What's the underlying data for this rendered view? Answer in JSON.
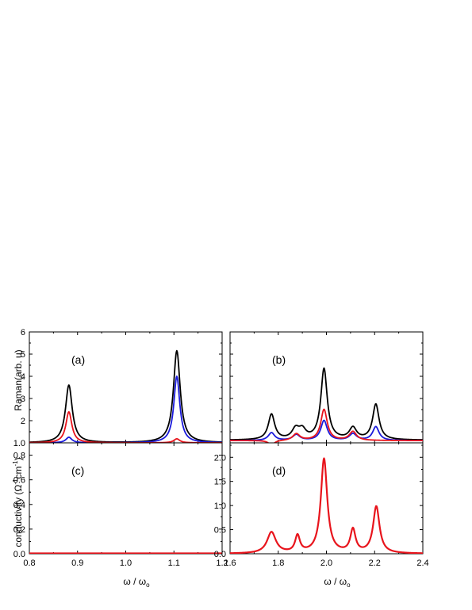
{
  "colors": {
    "black": "#000000",
    "blue": "#1a1adb",
    "red": "#e8141c"
  },
  "chart_data": [
    {
      "panel": "a",
      "type": "line",
      "label": "(a)",
      "ylabel": "Raman(arb. u)",
      "xlim": [
        0.8,
        1.2
      ],
      "ylim": [
        1.0,
        6.0
      ],
      "yticks": [
        "1.0",
        "1",
        "2",
        "3",
        "4",
        "5",
        "6"
      ],
      "ytick_values": [
        1.0,
        1,
        2,
        3,
        4,
        5,
        6
      ],
      "xticks": [],
      "series": [
        {
          "color": "#000000",
          "peaks": [
            [
              0.882,
              2.6,
              0.0085
            ],
            [
              1.106,
              4.15,
              0.0085
            ]
          ],
          "baseline": 1.0
        },
        {
          "color": "#1a1adb",
          "peaks": [
            [
              0.882,
              0.25,
              0.0075
            ],
            [
              1.106,
              3.0,
              0.0075
            ]
          ],
          "baseline": 1.0
        },
        {
          "color": "#e8141c",
          "peaks": [
            [
              0.882,
              1.4,
              0.0075
            ],
            [
              1.106,
              0.18,
              0.0075
            ]
          ],
          "baseline": 1.0
        }
      ]
    },
    {
      "panel": "b",
      "type": "line",
      "label": "(b)",
      "xlim": [
        1.6,
        2.4
      ],
      "ylim": [
        1.0,
        6.0
      ],
      "yticks": [],
      "xticks": [],
      "series": [
        {
          "color": "#000000",
          "peaks": [
            [
              1.772,
              1.15,
              0.016
            ],
            [
              1.872,
              0.45,
              0.018
            ],
            [
              1.9,
              0.4,
              0.018
            ],
            [
              1.99,
              3.2,
              0.016
            ],
            [
              2.11,
              0.52,
              0.018
            ],
            [
              2.205,
              1.6,
              0.016
            ]
          ],
          "baseline": 0.12
        },
        {
          "color": "#1a1adb",
          "peaks": [
            [
              1.772,
              0.35,
              0.016
            ],
            [
              1.875,
              0.26,
              0.018
            ],
            [
              1.99,
              0.9,
              0.016
            ],
            [
              2.11,
              0.3,
              0.018
            ],
            [
              2.205,
              0.62,
              0.016
            ]
          ],
          "baseline": 0.1
        },
        {
          "color": "#e8141c",
          "peaks": [
            [
              1.772,
              -0.2,
              0.016
            ],
            [
              1.875,
              0.3,
              0.018
            ],
            [
              1.99,
              1.4,
              0.016
            ],
            [
              2.11,
              0.4,
              0.018
            ],
            [
              2.205,
              0.0,
              0.016
            ]
          ],
          "baseline": 0.1
        }
      ]
    },
    {
      "panel": "c",
      "type": "line",
      "label": "(c)",
      "ylabel": "conductivity (Ω⁻¹cm⁻¹)",
      "xlabel": "ω / ω₀",
      "xlim": [
        0.8,
        1.2
      ],
      "ylim": [
        0.0,
        0.9
      ],
      "xticks": [
        "0.8",
        "0.9",
        "1.0",
        "1.1",
        "1.2"
      ],
      "xtick_values": [
        0.8,
        0.9,
        1.0,
        1.1,
        1.2
      ],
      "yticks": [
        "0.0",
        "0.2",
        "0.4",
        "0.6",
        "0.8"
      ],
      "ytick_values": [
        0.0,
        0.2,
        0.4,
        0.6,
        0.8
      ],
      "series": [
        {
          "color": "#e8141c",
          "points": [
            [
              0.8,
              0.003
            ],
            [
              1.2,
              0.003
            ]
          ]
        }
      ]
    },
    {
      "panel": "d",
      "type": "line",
      "label": "(d)",
      "xlabel": "ω / ω₀",
      "xlim": [
        1.6,
        2.4
      ],
      "ylim": [
        0.0,
        2.3
      ],
      "xticks": [
        "1.6",
        "1.8",
        "2.0",
        "2.2",
        "2.4"
      ],
      "xtick_values": [
        1.6,
        1.8,
        2.0,
        2.2,
        2.4
      ],
      "yticks": [
        "0.0",
        "0.5",
        "1.0",
        "1.5",
        "2.0"
      ],
      "ytick_values": [
        0.0,
        0.5,
        1.0,
        1.5,
        2.0
      ],
      "series": [
        {
          "color": "#e8141c",
          "peaks": [
            [
              1.772,
              0.44,
              0.022
            ],
            [
              1.88,
              0.35,
              0.012
            ],
            [
              1.99,
              1.96,
              0.016
            ],
            [
              2.11,
              0.48,
              0.013
            ],
            [
              2.207,
              0.97,
              0.016
            ]
          ],
          "baseline": 0.0
        }
      ]
    }
  ]
}
